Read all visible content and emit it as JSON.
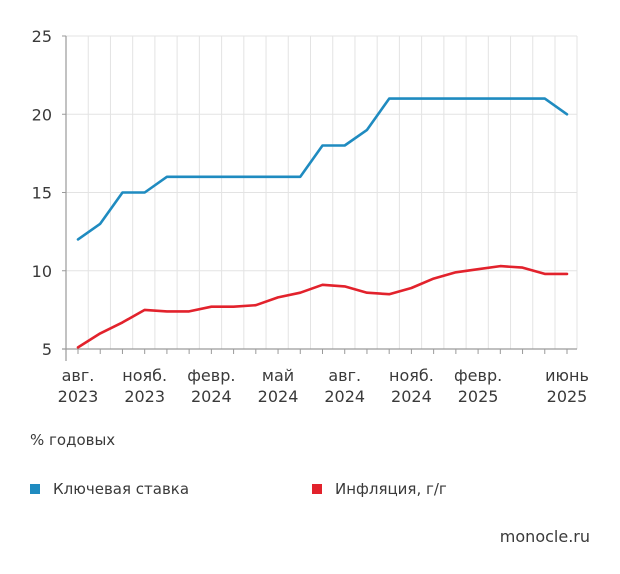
{
  "chart_data": {
    "type": "line",
    "x": [
      "2023-08",
      "2023-09",
      "2023-10",
      "2023-11",
      "2023-12",
      "2024-01",
      "2024-02",
      "2024-03",
      "2024-04",
      "2024-05",
      "2024-06",
      "2024-07",
      "2024-08",
      "2024-09",
      "2024-10",
      "2024-11",
      "2024-12",
      "2025-01",
      "2025-02",
      "2025-03",
      "2025-04",
      "2025-05",
      "2025-06"
    ],
    "series": [
      {
        "name": "Ключевая ставка",
        "color": "#1f8bc0",
        "values": [
          12,
          13,
          15,
          15,
          16,
          16,
          16,
          16,
          16,
          16,
          16,
          18,
          18,
          19,
          21,
          21,
          21,
          21,
          21,
          21,
          21,
          21,
          20
        ]
      },
      {
        "name": "Инфляция, г/г",
        "color": "#e2222c",
        "values": [
          5.1,
          6.0,
          6.7,
          7.5,
          7.4,
          7.4,
          7.7,
          7.7,
          7.8,
          8.3,
          8.6,
          9.1,
          9.0,
          8.6,
          8.5,
          8.9,
          9.5,
          9.9,
          10.1,
          10.3,
          10.2,
          9.8,
          9.8
        ]
      }
    ],
    "ylim": [
      5,
      25
    ],
    "yticks": [
      5,
      10,
      15,
      20,
      25
    ],
    "xtick_labels": [
      {
        "month": "авг.",
        "year": "2023",
        "index": 0
      },
      {
        "month": "нояб.",
        "year": "2023",
        "index": 3
      },
      {
        "month": "февр.",
        "year": "2024",
        "index": 6
      },
      {
        "month": "май",
        "year": "2024",
        "index": 9
      },
      {
        "month": "авг.",
        "year": "2024",
        "index": 12
      },
      {
        "month": "нояб.",
        "year": "2024",
        "index": 15
      },
      {
        "month": "февр.",
        "year": "2025",
        "index": 18
      },
      {
        "month": "июнь",
        "year": "2025",
        "index": 22
      }
    ],
    "grid": true,
    "legend_position": "bottom"
  },
  "unit_label": "% годовых",
  "source": "monocle.ru"
}
